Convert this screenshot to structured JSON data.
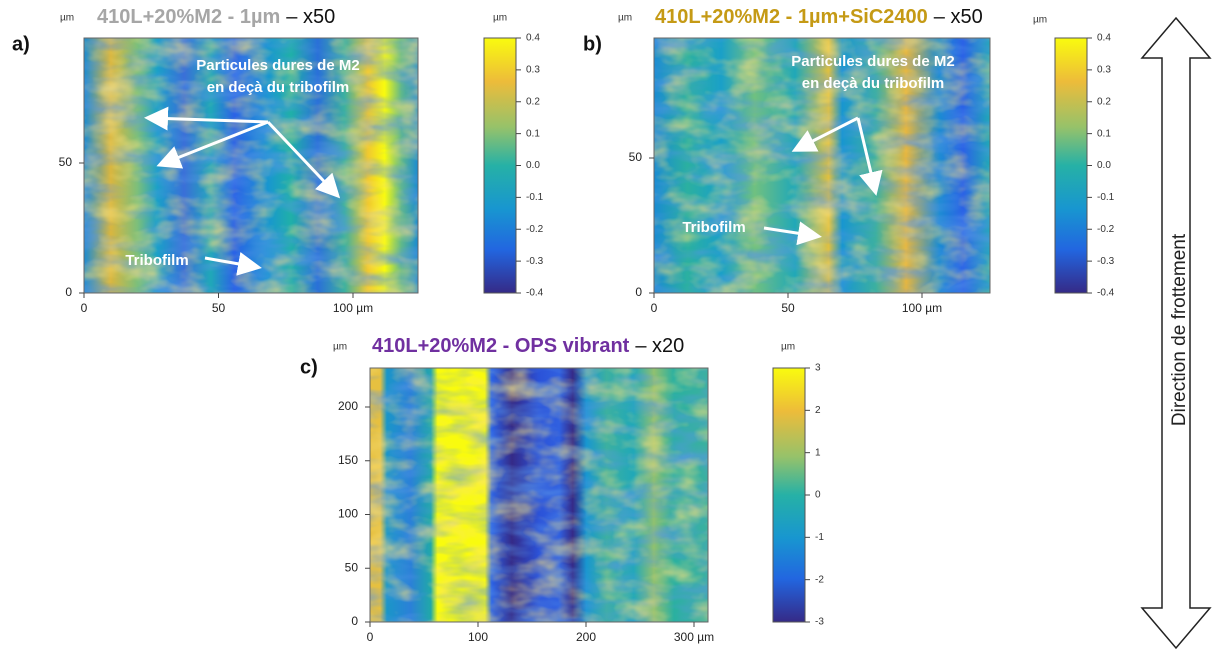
{
  "panels": [
    {
      "label": "a)",
      "title": "410L+20%M2 - 1µm",
      "magnification": "– x50",
      "axis_unit": "µm",
      "xticks": [
        "0",
        "50",
        "100 µm"
      ],
      "yticks": [
        "0",
        "50"
      ],
      "colorbar": {
        "unit": "µm",
        "ticks": [
          "0.4",
          "0.3",
          "0.2",
          "0.1",
          "0.0",
          "-0.1",
          "-0.2",
          "-0.3",
          "-0.4"
        ]
      },
      "annotations": [
        {
          "lines": [
            "Particules dures de M2",
            "en deçà du tribofilm"
          ]
        },
        {
          "lines": [
            "Tribofilm"
          ]
        }
      ]
    },
    {
      "label": "b)",
      "title": "410L+20%M2 - 1µm+SiC2400",
      "magnification": "– x50",
      "axis_unit": "µm",
      "xticks": [
        "0",
        "50",
        "100 µm"
      ],
      "yticks": [
        "0",
        "50"
      ],
      "colorbar": {
        "unit": "µm",
        "ticks": [
          "0.4",
          "0.3",
          "0.2",
          "0.1",
          "0.0",
          "-0.1",
          "-0.2",
          "-0.3",
          "-0.4"
        ]
      },
      "annotations": [
        {
          "lines": [
            "Particules dures de M2",
            "en deçà du tribofilm"
          ]
        },
        {
          "lines": [
            "Tribofilm"
          ]
        }
      ]
    },
    {
      "label": "c)",
      "title": "410L+20%M2 - OPS vibrant",
      "magnification": "– x20",
      "axis_unit": "µm",
      "xticks": [
        "0",
        "100",
        "200",
        "300 µm"
      ],
      "yticks": [
        "0",
        "50",
        "100",
        "150",
        "200"
      ],
      "colorbar": {
        "unit": "µm",
        "ticks": [
          "3",
          "2",
          "1",
          "0",
          "-1",
          "-2",
          "-3"
        ]
      },
      "annotations": []
    }
  ],
  "direction_label": "Direction de frottement"
}
